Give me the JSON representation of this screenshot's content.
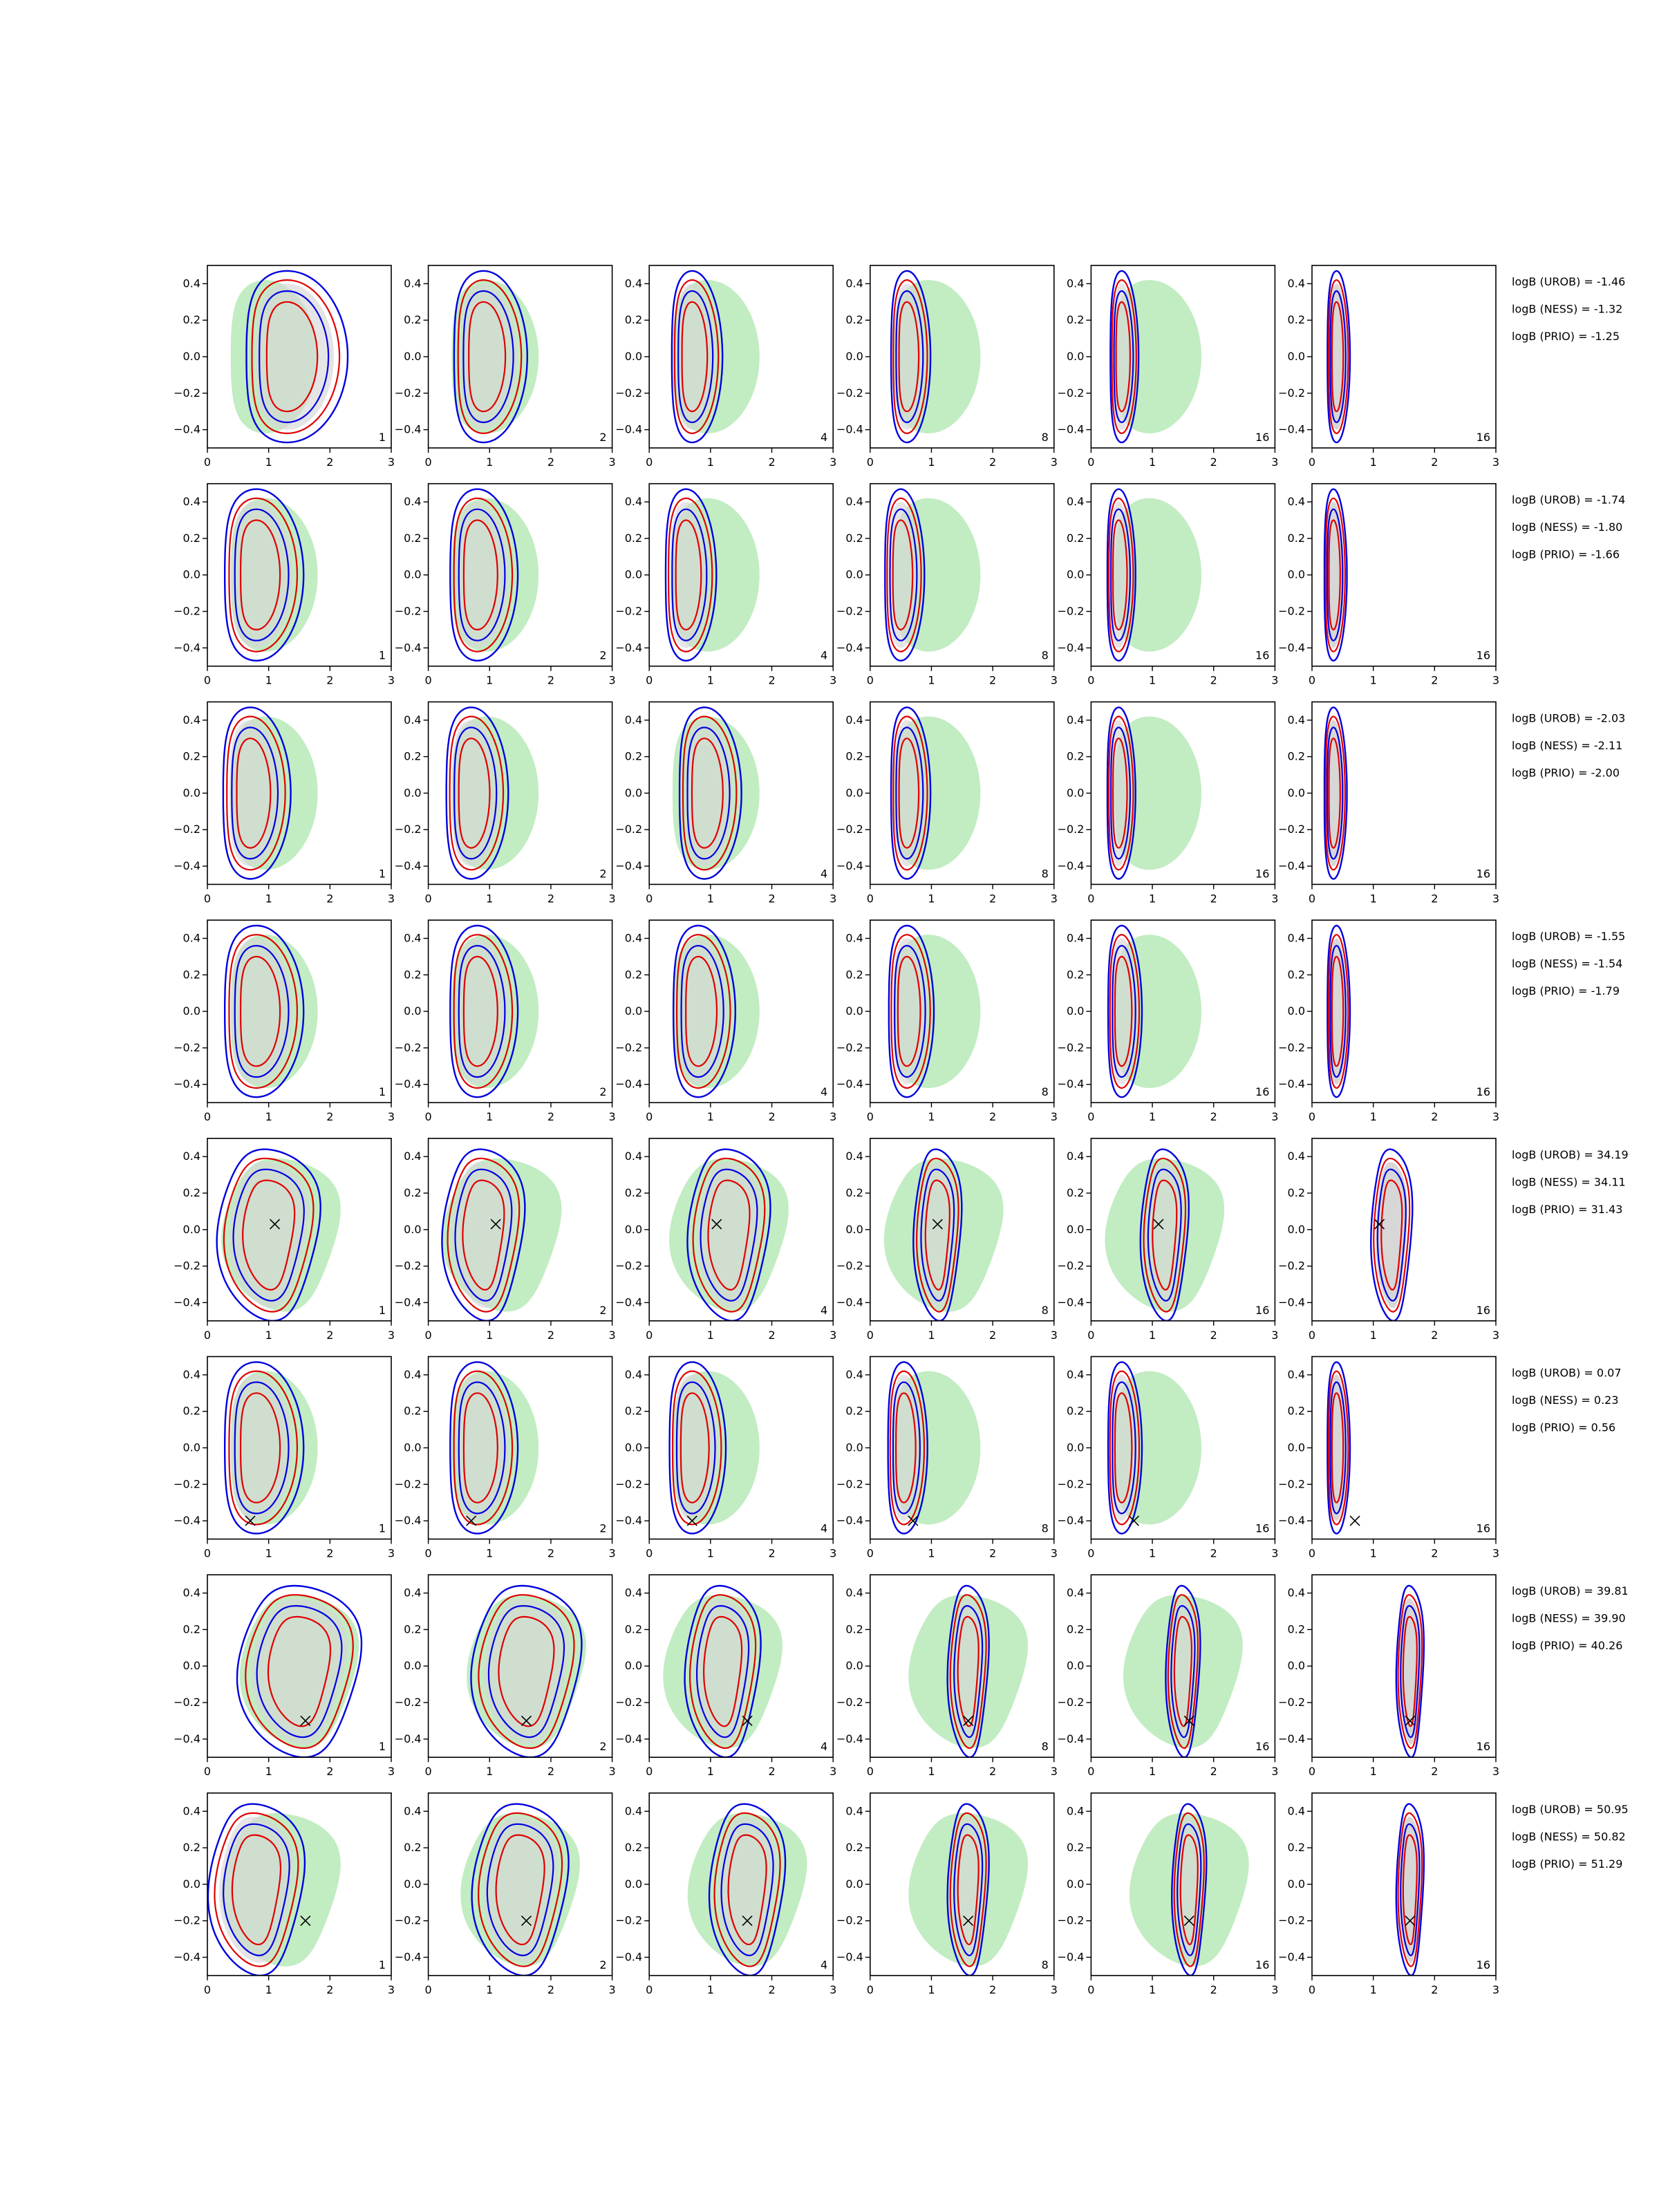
{
  "colors": {
    "outer_fill": "#c2ecc2",
    "inner_fill": "#d7d7d7",
    "red_contour": "#e00000",
    "blue_contour": "#0000e0",
    "marker": "#000000",
    "frame": "#000000"
  },
  "chart_data": {
    "type": "contour-grid",
    "rows": 8,
    "cols": 6,
    "xlim": [
      0,
      3
    ],
    "ylim": [
      -0.5,
      0.5
    ],
    "x_ticks": [
      "0",
      "1",
      "2",
      "3"
    ],
    "y_ticks": [
      "0.4",
      "0.2",
      "0.0",
      "−0.2",
      "−0.4"
    ],
    "column_counts": [
      "1",
      "2",
      "4",
      "8",
      "16",
      "16"
    ],
    "last_column_count_fill": "gray",
    "grid": false,
    "marker_symbol": "×",
    "rows_data": [
      {
        "logB": [
          "logB (UROB) = -1.46",
          "logB (NESS) = -1.32",
          "logB (PRIO) = -1.25"
        ],
        "marker": null,
        "shape": "crescent",
        "posterior_x_center": [
          1.3,
          0.9,
          0.7,
          0.6,
          0.5,
          0.4
        ],
        "posterior_x_halfwidth": [
          0.9,
          0.65,
          0.45,
          0.35,
          0.25,
          0.2
        ]
      },
      {
        "logB": [
          "logB (UROB) = -1.74",
          "logB (NESS) = -1.80",
          "logB (PRIO) = -1.66"
        ],
        "marker": null,
        "shape": "crescent",
        "posterior_x_center": [
          0.8,
          0.8,
          0.6,
          0.5,
          0.45,
          0.35
        ],
        "posterior_x_halfwidth": [
          0.7,
          0.6,
          0.45,
          0.35,
          0.25,
          0.2
        ]
      },
      {
        "logB": [
          "logB (UROB) = -2.03",
          "logB (NESS) = -2.11",
          "logB (PRIO) = -2.00"
        ],
        "marker": null,
        "shape": "crescent",
        "posterior_x_center": [
          0.7,
          0.7,
          0.9,
          0.6,
          0.45,
          0.35
        ],
        "posterior_x_halfwidth": [
          0.6,
          0.55,
          0.55,
          0.35,
          0.25,
          0.2
        ]
      },
      {
        "logB": [
          "logB (UROB) = -1.55",
          "logB (NESS) = -1.54",
          "logB (PRIO) = -1.79"
        ],
        "marker": null,
        "shape": "crescent",
        "posterior_x_center": [
          0.8,
          0.8,
          0.8,
          0.6,
          0.5,
          0.4
        ],
        "posterior_x_halfwidth": [
          0.7,
          0.6,
          0.55,
          0.4,
          0.3,
          0.2
        ]
      },
      {
        "logB": [
          "logB (UROB) = 34.19",
          "logB (NESS) = 34.11",
          "logB (PRIO) = 31.43"
        ],
        "marker": {
          "x": 1.1,
          "y": 0.03
        },
        "shape": "blob",
        "posterior_x_center": [
          1.0,
          0.9,
          1.3,
          1.1,
          1.2,
          1.3
        ],
        "posterior_x_halfwidth": [
          0.75,
          0.6,
          0.6,
          0.35,
          0.35,
          0.3
        ]
      },
      {
        "logB": [
          "logB (UROB) = 0.07",
          "logB (NESS) = 0.23",
          "logB (PRIO) = 0.56"
        ],
        "marker": {
          "x": 0.7,
          "y": -0.4
        },
        "shape": "crescent",
        "posterior_x_center": [
          0.8,
          0.8,
          0.7,
          0.55,
          0.5,
          0.4
        ],
        "posterior_x_halfwidth": [
          0.7,
          0.6,
          0.5,
          0.35,
          0.3,
          0.2
        ]
      },
      {
        "logB": [
          "logB (UROB) = 39.81",
          "logB (NESS) = 39.90",
          "logB (PRIO) = 40.26"
        ],
        "marker": {
          "x": 1.6,
          "y": -0.3
        },
        "shape": "blob",
        "posterior_x_center": [
          1.5,
          1.6,
          1.2,
          1.6,
          1.5,
          1.6
        ],
        "posterior_x_halfwidth": [
          0.9,
          0.8,
          0.55,
          0.3,
          0.25,
          0.2
        ]
      },
      {
        "logB": [
          "logB (UROB) = 50.95",
          "logB (NESS) = 50.82",
          "logB (PRIO) = 51.29"
        ],
        "marker": {
          "x": 1.6,
          "y": -0.2
        },
        "shape": "blob",
        "posterior_x_center": [
          0.8,
          1.5,
          1.6,
          1.6,
          1.6,
          1.6
        ],
        "posterior_x_halfwidth": [
          0.7,
          0.7,
          0.55,
          0.3,
          0.25,
          0.2
        ]
      }
    ]
  }
}
